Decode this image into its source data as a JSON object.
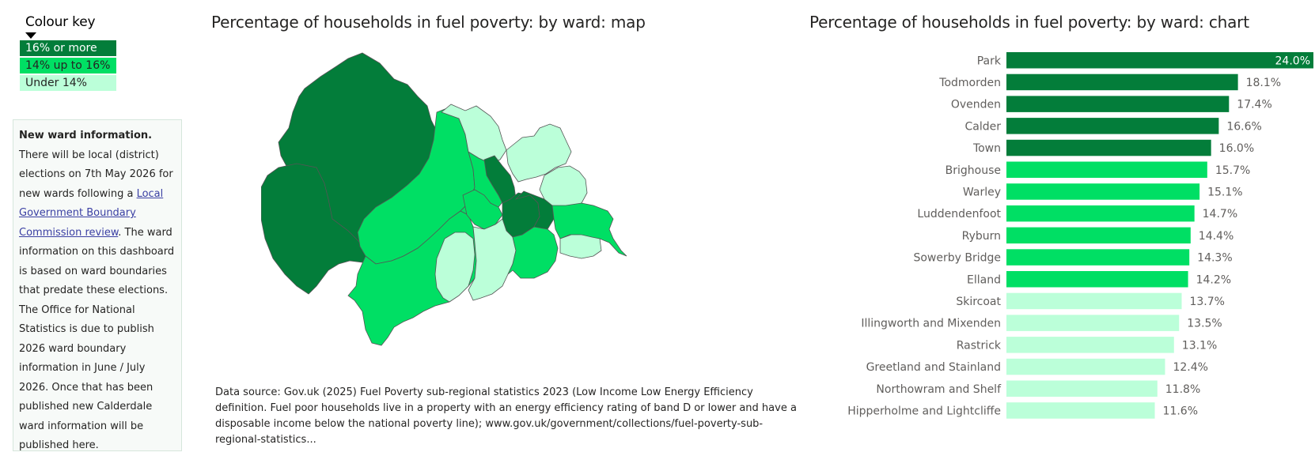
{
  "colours": {
    "high": "#037d3a",
    "mid": "#00df64",
    "low": "#bbffd9"
  },
  "key": {
    "title": "Colour key",
    "items": [
      {
        "label": "16% or more",
        "color": "#037d3a",
        "text_color": "#ffffff"
      },
      {
        "label": "14% up to 16%",
        "color": "#00df64",
        "text_color": "#252423"
      },
      {
        "label": "Under 14%",
        "color": "#bbffd9",
        "text_color": "#252423"
      }
    ]
  },
  "info": {
    "heading": "New ward information.",
    "text_before_link": "There will be local (district) elections on 7th May 2026 for new wards following a ",
    "link_text": "Local Government Boundary Commission review",
    "text_after_link": ".  The ward information on this dashboard is based on ward boundaries that predate these elections. The Office for National Statistics is due to publish 2026 ward boundary information in June / July 2026.  Once that has been published new Calderdale ward information will be published here."
  },
  "map": {
    "title": "Percentage of households in fuel poverty: by ward: map"
  },
  "source": "Data source: Gov.uk (2025) Fuel Poverty sub-regional statistics 2023 (Low Income Low Energy Efficiency definition. Fuel poor households live in a property with an energy efficiency rating of band D or lower and have a disposable income below the national poverty line); www.gov.uk/government/collections/fuel-poverty-sub-regional-statistics...",
  "chart_data": {
    "type": "bar",
    "orientation": "horizontal",
    "title": "Percentage of households in fuel poverty: by ward: chart",
    "categories": [
      "Park",
      "Todmorden",
      "Ovenden",
      "Calder",
      "Town",
      "Brighouse",
      "Warley",
      "Luddendenfoot",
      "Ryburn",
      "Sowerby Bridge",
      "Elland",
      "Skircoat",
      "Illingworth and Mixenden",
      "Rastrick",
      "Greetland and Stainland",
      "Northowram and Shelf",
      "Hipperholme and Lightcliffe"
    ],
    "values": [
      24.0,
      18.1,
      17.4,
      16.6,
      16.0,
      15.7,
      15.1,
      14.7,
      14.4,
      14.3,
      14.2,
      13.7,
      13.5,
      13.1,
      12.4,
      11.8,
      11.6
    ],
    "data_labels": [
      "24.0%",
      "18.1%",
      "17.4%",
      "16.6%",
      "16.0%",
      "15.7%",
      "15.1%",
      "14.7%",
      "14.4%",
      "14.3%",
      "14.2%",
      "13.7%",
      "13.5%",
      "13.1%",
      "12.4%",
      "11.8%",
      "11.6%"
    ],
    "colors": [
      "#037d3a",
      "#037d3a",
      "#037d3a",
      "#037d3a",
      "#037d3a",
      "#00df64",
      "#00df64",
      "#00df64",
      "#00df64",
      "#00df64",
      "#00df64",
      "#bbffd9",
      "#bbffd9",
      "#bbffd9",
      "#bbffd9",
      "#bbffd9",
      "#bbffd9"
    ],
    "xlim": [
      0,
      24.0
    ],
    "xlabel": "",
    "ylabel": "",
    "grid": false
  }
}
